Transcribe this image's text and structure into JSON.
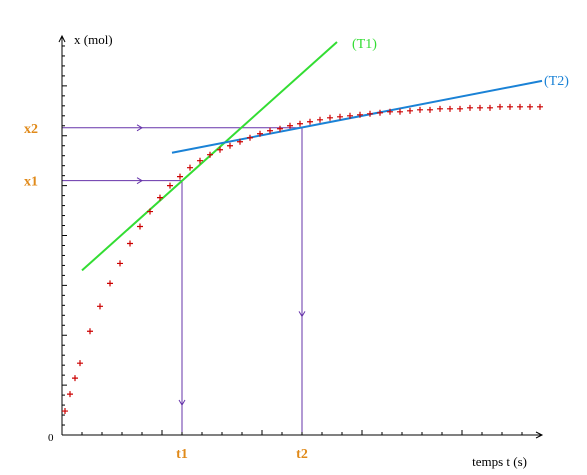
{
  "chart_data": {
    "type": "scatter",
    "xlabel": "temps t (s)",
    "ylabel": "x (mol)",
    "origin_label": "0",
    "xlim": [
      0,
      48
    ],
    "ylim": [
      0,
      40
    ],
    "points": [
      [
        0.3,
        2.4
      ],
      [
        0.8,
        4.1
      ],
      [
        1.3,
        5.7
      ],
      [
        1.8,
        7.2
      ],
      [
        2.8,
        10.4
      ],
      [
        3.8,
        12.9
      ],
      [
        4.8,
        15.2
      ],
      [
        5.8,
        17.2
      ],
      [
        6.8,
        19.2
      ],
      [
        7.8,
        20.9
      ],
      [
        8.8,
        22.4
      ],
      [
        9.8,
        23.8
      ],
      [
        10.8,
        25.0
      ],
      [
        11.8,
        25.9
      ],
      [
        12.8,
        26.8
      ],
      [
        13.8,
        27.5
      ],
      [
        14.8,
        28.1
      ],
      [
        15.8,
        28.6
      ],
      [
        16.8,
        29.0
      ],
      [
        17.8,
        29.4
      ],
      [
        18.8,
        29.8
      ],
      [
        19.8,
        30.2
      ],
      [
        20.8,
        30.5
      ],
      [
        21.8,
        30.7
      ],
      [
        22.8,
        31.0
      ],
      [
        23.8,
        31.2
      ],
      [
        24.8,
        31.4
      ],
      [
        25.8,
        31.6
      ],
      [
        26.8,
        31.8
      ],
      [
        27.8,
        31.9
      ],
      [
        28.8,
        32.0
      ],
      [
        29.8,
        32.1
      ],
      [
        30.8,
        32.2
      ],
      [
        31.8,
        32.3
      ],
      [
        32.8,
        32.4
      ],
      [
        33.8,
        32.4
      ],
      [
        34.8,
        32.5
      ],
      [
        35.8,
        32.6
      ],
      [
        36.8,
        32.6
      ],
      [
        37.8,
        32.7
      ],
      [
        38.8,
        32.7
      ],
      [
        39.8,
        32.7
      ],
      [
        40.8,
        32.8
      ],
      [
        41.8,
        32.8
      ],
      [
        42.8,
        32.8
      ],
      [
        43.8,
        32.9
      ],
      [
        44.8,
        32.9
      ],
      [
        45.8,
        32.9
      ],
      [
        46.8,
        32.9
      ],
      [
        47.8,
        32.9
      ]
    ],
    "point_color": "#cc0000",
    "tangents": [
      {
        "label": "(T1)",
        "color": "#33dd33",
        "x1": 2,
        "y1": 16.5,
        "x2": 27.5,
        "y2": 39.4
      },
      {
        "label": "(T2)",
        "color": "#1a82d6",
        "x1": 11,
        "y1": 28.3,
        "x2": 48,
        "y2": 35.5
      }
    ],
    "markers": [
      {
        "x_label": "t1",
        "y_label": "x1",
        "x": 12,
        "y": 25.5
      },
      {
        "x_label": "t2",
        "y_label": "x2",
        "x": 24,
        "y": 30.8
      }
    ],
    "marker_color": "#6633aa",
    "marker_label_color": "#e08a1a",
    "axis_color": "#000000"
  }
}
